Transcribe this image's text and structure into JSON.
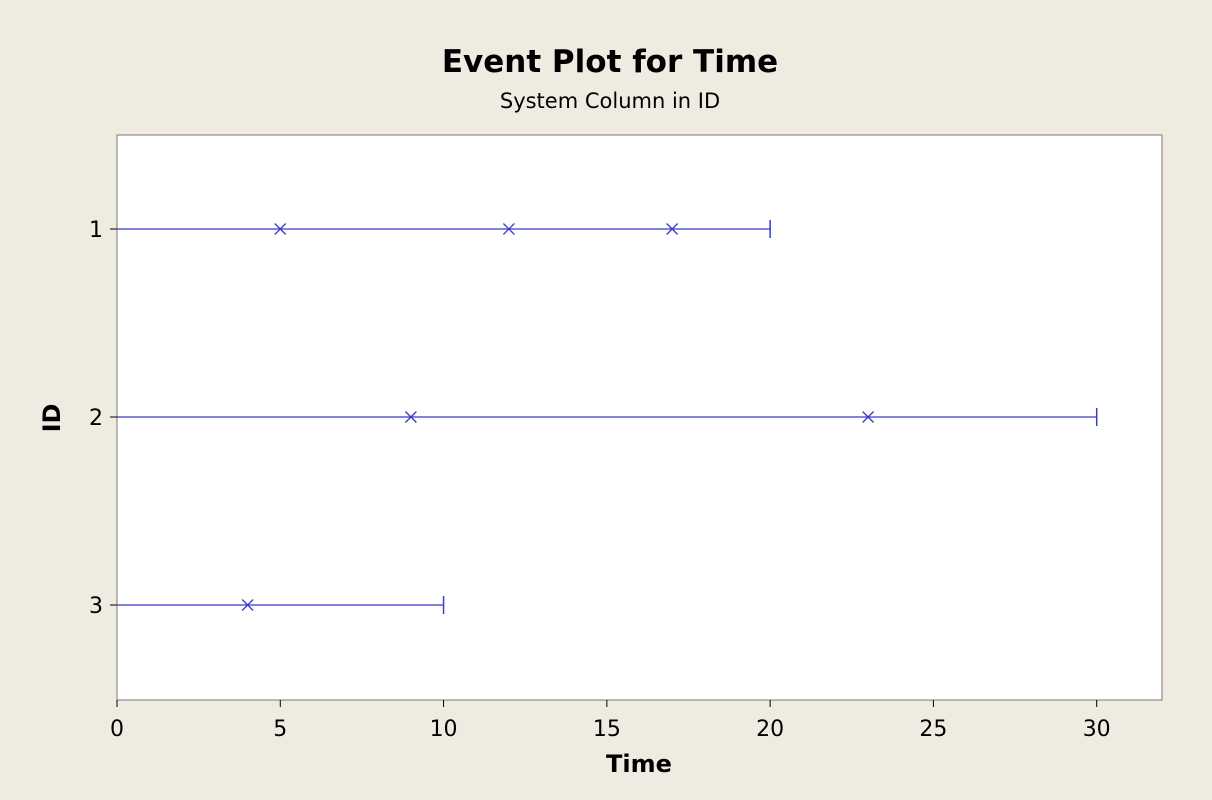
{
  "chart_data": {
    "type": "event_plot",
    "title": "Event Plot for Time",
    "subtitle": "System Column in ID",
    "xlabel": "Time",
    "ylabel": "ID",
    "xlim": [
      0,
      32
    ],
    "x_ticks": [
      0,
      5,
      10,
      15,
      20,
      25,
      30
    ],
    "grid": false,
    "legend": "none",
    "colors": {
      "series": "#3b3bcc",
      "background": "#f0ebe1",
      "plot_area": "#ffffff"
    },
    "systems": [
      {
        "id": "1",
        "start": 0,
        "end": 20,
        "events": [
          5,
          12,
          17
        ]
      },
      {
        "id": "2",
        "start": 0,
        "end": 30,
        "events": [
          9,
          23
        ]
      },
      {
        "id": "3",
        "start": 0,
        "end": 10,
        "events": [
          4
        ]
      }
    ]
  }
}
